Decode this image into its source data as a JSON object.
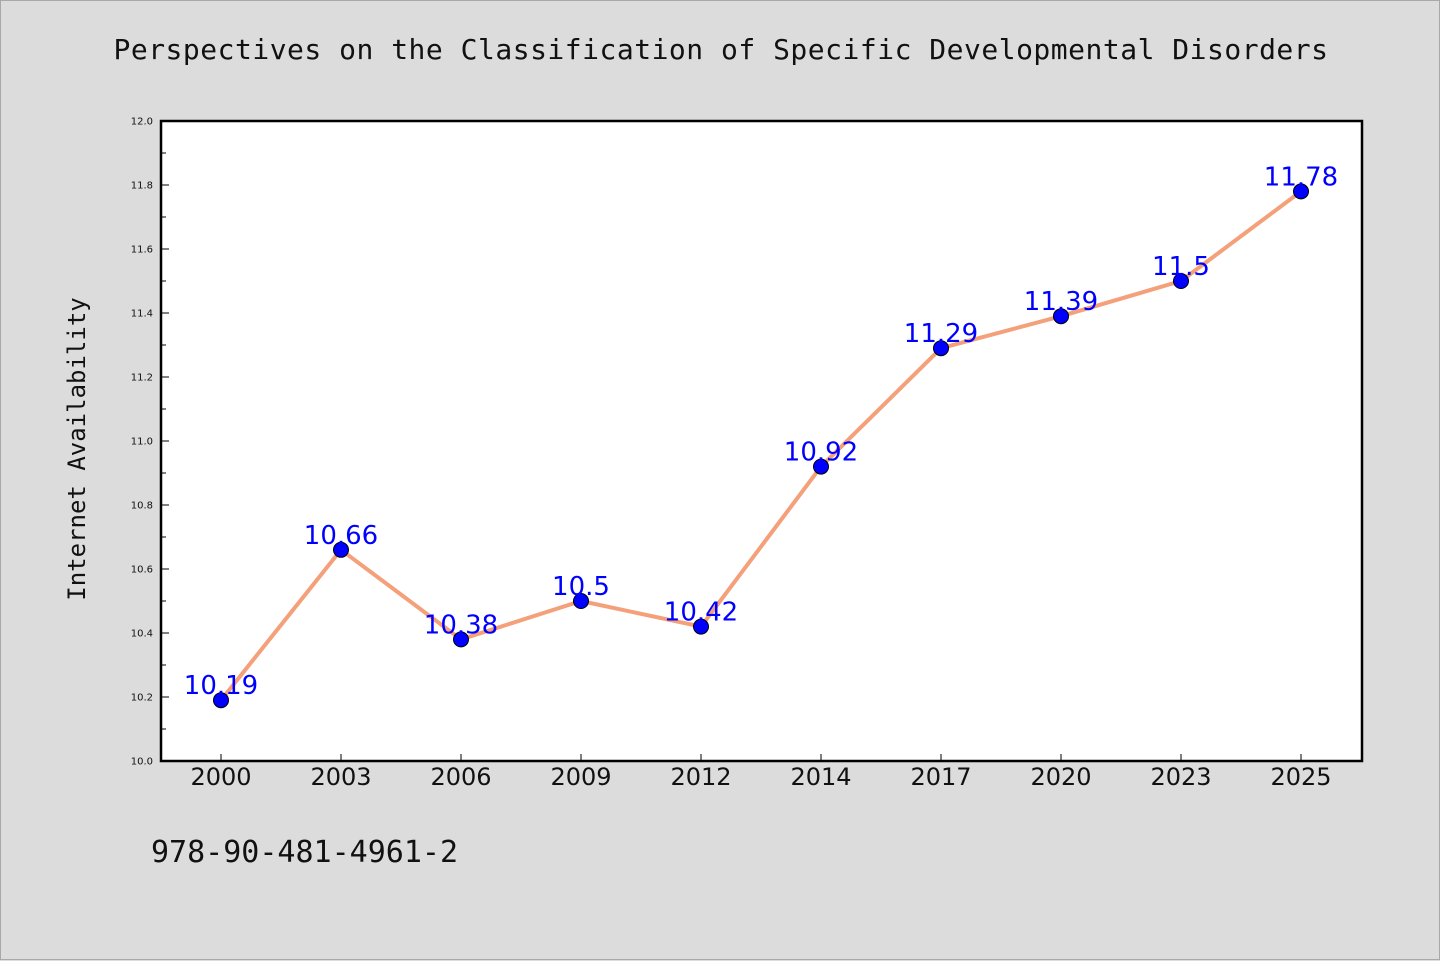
{
  "chart_data": {
    "type": "line",
    "title": "Perspectives on the Classification of Specific Developmental Disorders",
    "xlabel": "",
    "ylabel": "Internet Availability",
    "categories": [
      "2000",
      "2003",
      "2006",
      "2009",
      "2012",
      "2014",
      "2017",
      "2020",
      "2023",
      "2025"
    ],
    "series": [
      {
        "values": [
          10.19,
          10.66,
          10.38,
          10.5,
          10.42,
          10.92,
          11.29,
          11.39,
          11.5,
          11.78
        ]
      }
    ],
    "data_labels": [
      "10.19",
      "10.66",
      "10.38",
      "10.5",
      "10.42",
      "10.92",
      "11.29",
      "11.39",
      "11.5",
      "11.78"
    ],
    "ylim": [
      10.0,
      12.0
    ],
    "y_ticks": [
      "10.0",
      "10.2",
      "10.4",
      "10.6",
      "10.8",
      "11.0",
      "11.2",
      "11.4",
      "11.6",
      "11.8",
      "12.0"
    ],
    "grid": false,
    "legend": "none",
    "colors": {
      "line": "#f4a07a",
      "marker": "#0000ff",
      "label": "#0000ff",
      "background": "#dcdcdc",
      "plot_background": "#ffffff"
    }
  },
  "footer": {
    "isbn": "978-90-481-4961-2"
  }
}
